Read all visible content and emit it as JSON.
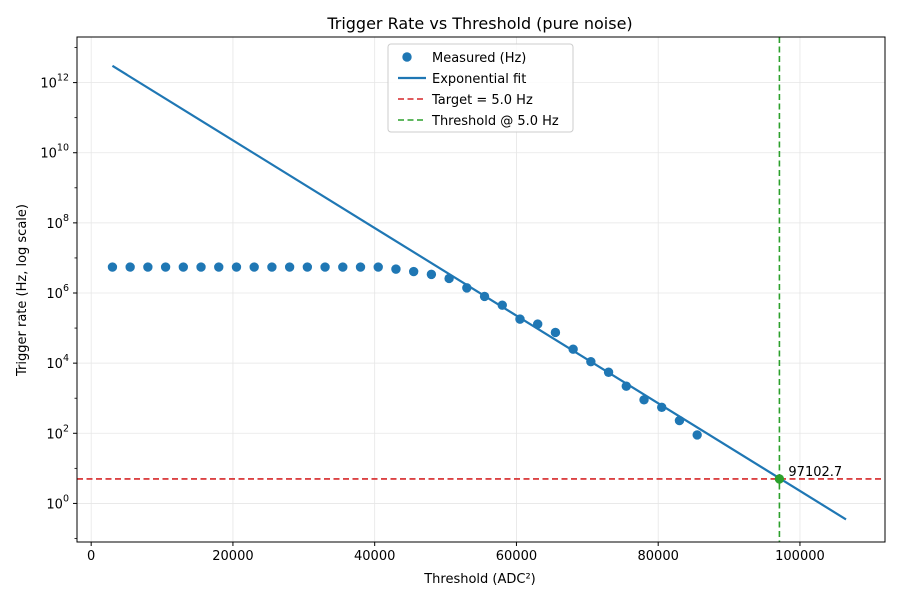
{
  "chart_data": {
    "type": "scatter",
    "title": "Trigger Rate vs Threshold (pure noise)",
    "xlabel": "Threshold (ADC²)",
    "ylabel": "Trigger rate (Hz, log scale)",
    "xlim": [
      -2000,
      112000
    ],
    "ylim_log10": [
      -1.1,
      13.3
    ],
    "yscale": "log",
    "x_ticks": [
      0,
      20000,
      40000,
      60000,
      80000,
      100000
    ],
    "x_tick_labels": [
      "0",
      "20000",
      "40000",
      "60000",
      "80000",
      "100000"
    ],
    "y_ticks_log10": [
      0,
      2,
      4,
      6,
      8,
      10,
      12
    ],
    "grid": true,
    "legend_position": "top-center",
    "colors": {
      "measured": "#1f77b4",
      "fit": "#1f77b4",
      "target": "#d62728",
      "threshold": "#2ca02c"
    },
    "series": [
      {
        "name": "Measured (Hz)",
        "kind": "scatter",
        "x": [
          3000,
          5500,
          8000,
          10500,
          13000,
          15500,
          18000,
          20500,
          23000,
          25500,
          28000,
          30500,
          33000,
          35500,
          38000,
          40500,
          43000,
          45500,
          48000,
          50500,
          53000,
          55500,
          58000,
          60500,
          63000,
          65500,
          68000,
          70500,
          73000,
          75500,
          78000,
          80500,
          83000,
          85500
        ],
        "y": [
          5500000.0,
          5500000.0,
          5500000.0,
          5500000.0,
          5500000.0,
          5500000.0,
          5500000.0,
          5500000.0,
          5500000.0,
          5500000.0,
          5500000.0,
          5500000.0,
          5500000.0,
          5500000.0,
          5500000.0,
          5500000.0,
          4800000.0,
          4100000.0,
          3400000.0,
          2600000.0,
          1400000.0,
          800000.0,
          450000.0,
          180000.0,
          130000.0,
          75000.0,
          25000.0,
          11000.0,
          5500.0,
          2200.0,
          900.0,
          550.0,
          230.0,
          90.0
        ]
      },
      {
        "name": "Exponential fit",
        "kind": "line",
        "x": [
          3000,
          106500
        ],
        "y": [
          3000000000000.0,
          0.35
        ]
      },
      {
        "name": "Target = 5.0 Hz",
        "kind": "hline",
        "y": 5.0
      },
      {
        "name": "Threshold @ 5.0 Hz",
        "kind": "vline",
        "x": 97102.7
      }
    ],
    "marker_point": {
      "x": 97102.7,
      "y": 5.0
    },
    "annotation": "97102.7"
  }
}
